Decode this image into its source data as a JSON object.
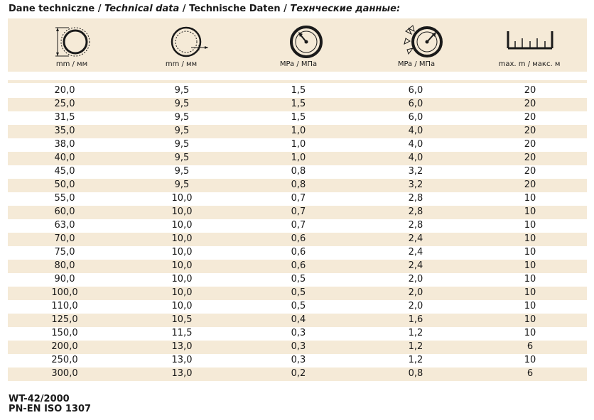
{
  "title": {
    "pl": "Dane techniczne",
    "en": "Technical data",
    "de": "Technische Daten",
    "ru": "Технческие данные:",
    "sep": "/"
  },
  "columns": [
    {
      "icon": "hose-outer-diameter-icon",
      "unit": "mm / мм"
    },
    {
      "icon": "bend-radius-icon",
      "unit": "mm / мм"
    },
    {
      "icon": "working-pressure-gauge-icon",
      "unit": "MPa / МПа"
    },
    {
      "icon": "burst-pressure-gauge-icon",
      "unit": "MPa / МПа"
    },
    {
      "icon": "max-length-ruler-icon",
      "unit": "max. m / макс. м"
    }
  ],
  "rows": [
    [
      "20,0",
      "9,5",
      "1,5",
      "6,0",
      "20"
    ],
    [
      "25,0",
      "9,5",
      "1,5",
      "6,0",
      "20"
    ],
    [
      "31,5",
      "9,5",
      "1,5",
      "6,0",
      "20"
    ],
    [
      "35,0",
      "9,5",
      "1,0",
      "4,0",
      "20"
    ],
    [
      "38,0",
      "9,5",
      "1,0",
      "4,0",
      "20"
    ],
    [
      "40,0",
      "9,5",
      "1,0",
      "4,0",
      "20"
    ],
    [
      "45,0",
      "9,5",
      "0,8",
      "3,2",
      "20"
    ],
    [
      "50,0",
      "9,5",
      "0,8",
      "3,2",
      "20"
    ],
    [
      "55,0",
      "10,0",
      "0,7",
      "2,8",
      "10"
    ],
    [
      "60,0",
      "10,0",
      "0,7",
      "2,8",
      "10"
    ],
    [
      "63,0",
      "10,0",
      "0,7",
      "2,8",
      "10"
    ],
    [
      "70,0",
      "10,0",
      "0,6",
      "2,4",
      "10"
    ],
    [
      "75,0",
      "10,0",
      "0,6",
      "2,4",
      "10"
    ],
    [
      "80,0",
      "10,0",
      "0,6",
      "2,4",
      "10"
    ],
    [
      "90,0",
      "10,0",
      "0,5",
      "2,0",
      "10"
    ],
    [
      "100,0",
      "10,0",
      "0,5",
      "2,0",
      "10"
    ],
    [
      "110,0",
      "10,0",
      "0,5",
      "2,0",
      "10"
    ],
    [
      "125,0",
      "10,5",
      "0,4",
      "1,6",
      "10"
    ],
    [
      "150,0",
      "11,5",
      "0,3",
      "1,2",
      "10"
    ],
    [
      "200,0",
      "13,0",
      "0,3",
      "1,2",
      "6"
    ],
    [
      "250,0",
      "13,0",
      "0,3",
      "1,2",
      "10"
    ],
    [
      "300,0",
      "13,0",
      "0,2",
      "0,8",
      "6"
    ]
  ],
  "footer": {
    "line1": "WT-42/2000",
    "line2": "PN-EN ISO 1307"
  },
  "colors": {
    "band": "#f5ead7",
    "text": "#1a1a1a"
  }
}
